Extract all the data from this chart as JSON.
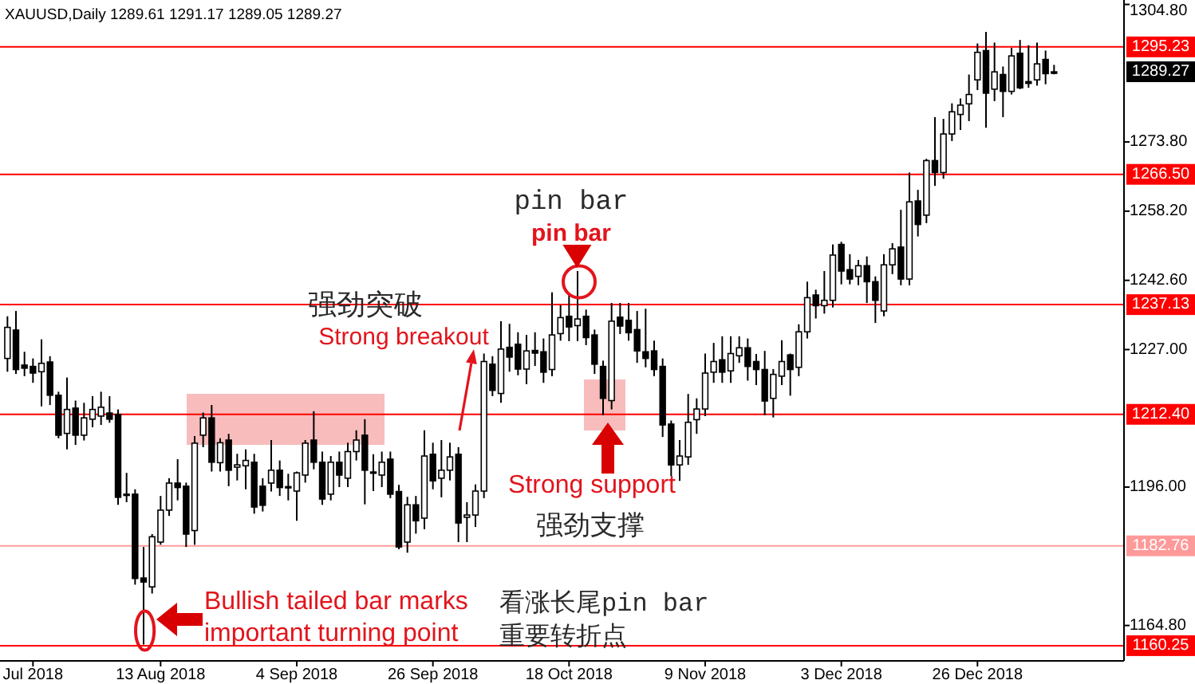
{
  "chart_data": {
    "type": "candlestick",
    "title": "XAUUSD,Daily 1289.61 1291.17 1289.05 1289.27",
    "categories": [
      null,
      null,
      null,
      "Jul 2018",
      null,
      null,
      null,
      null,
      null,
      null,
      null,
      null,
      null,
      null,
      null,
      null,
      null,
      null,
      "13 Aug 2018",
      null,
      null,
      null,
      null,
      null,
      null,
      null,
      null,
      null,
      null,
      null,
      null,
      null,
      null,
      null,
      "4 Sep 2018",
      null,
      null,
      null,
      null,
      null,
      null,
      null,
      null,
      null,
      null,
      null,
      null,
      null,
      null,
      null,
      "26 Sep 2018",
      null,
      null,
      null,
      null,
      null,
      null,
      null,
      null,
      null,
      null,
      null,
      null,
      null,
      null,
      null,
      "18 Oct 2018",
      null,
      null,
      null,
      null,
      null,
      null,
      null,
      null,
      null,
      null,
      null,
      null,
      null,
      null,
      null,
      "9 Nov 2018",
      null,
      null,
      null,
      null,
      null,
      null,
      null,
      null,
      null,
      null,
      null,
      null,
      null,
      null,
      null,
      "3 Dec 2018",
      null,
      null,
      null,
      null,
      null,
      null,
      null,
      null,
      null,
      null,
      null,
      null,
      null,
      null,
      null,
      "26 Dec 2018",
      null,
      null,
      null,
      null,
      null,
      null,
      null,
      null,
      null
    ],
    "ohlc": [
      [
        1225,
        1234.5,
        1222,
        1232
      ],
      [
        1231.4,
        1235.7,
        1221.5,
        1222.5
      ],
      [
        1223.5,
        1226.5,
        1221,
        1222.8
      ],
      [
        1223.2,
        1225,
        1219.5,
        1221.7
      ],
      [
        1222,
        1229.3,
        1214.2,
        1223.9
      ],
      [
        1224.2,
        1225.5,
        1214.5,
        1216.7
      ],
      [
        1216.7,
        1217.5,
        1207,
        1207.7
      ],
      [
        1208.1,
        1220.7,
        1204.5,
        1213.5
      ],
      [
        1213.8,
        1215.5,
        1205.5,
        1207.7
      ],
      [
        1207.7,
        1215,
        1206.5,
        1211.6
      ],
      [
        1211.3,
        1216.5,
        1209.5,
        1213.5
      ],
      [
        1212,
        1217.5,
        1210,
        1214
      ],
      [
        1212.7,
        1216.5,
        1210.5,
        1211.3
      ],
      [
        1212.4,
        1213.5,
        1192,
        1193.7
      ],
      [
        1194.2,
        1199.2,
        1192.6,
        1194.4
      ],
      [
        1194.4,
        1195.5,
        1174,
        1175.4
      ],
      [
        1175.5,
        1182.5,
        1160.5,
        1174.6
      ],
      [
        1173.5,
        1185.4,
        1172,
        1184.8
      ],
      [
        1183.6,
        1194,
        1183,
        1190.8
      ],
      [
        1190.8,
        1198,
        1189.5,
        1196.9
      ],
      [
        1196.9,
        1202.3,
        1193,
        1195.9
      ],
      [
        1196.2,
        1197,
        1182.5,
        1185.4
      ],
      [
        1186.2,
        1207.5,
        1183,
        1205.9
      ],
      [
        1207.7,
        1212.8,
        1205,
        1211.6
      ],
      [
        1211.6,
        1214.5,
        1199.5,
        1201.6
      ],
      [
        1201.5,
        1207,
        1199.5,
        1206
      ],
      [
        1206.6,
        1208,
        1196.2,
        1199.8
      ],
      [
        1200.5,
        1203.5,
        1197.5,
        1201
      ],
      [
        1200.8,
        1204.5,
        1195.5,
        1202
      ],
      [
        1201.6,
        1203.5,
        1190,
        1191.5
      ],
      [
        1196.2,
        1198,
        1190.5,
        1191.9
      ],
      [
        1196.9,
        1206.6,
        1195,
        1199.8
      ],
      [
        1199.8,
        1202,
        1194,
        1195.9
      ],
      [
        1196.1,
        1199,
        1193,
        1195.9
      ],
      [
        1195.1,
        1199.5,
        1188.4,
        1199.2
      ],
      [
        1198.7,
        1206.6,
        1197,
        1205.9
      ],
      [
        1206.6,
        1213.1,
        1200,
        1201.6
      ],
      [
        1201.6,
        1204,
        1192,
        1193.3
      ],
      [
        1194.4,
        1203,
        1193,
        1201.6
      ],
      [
        1201.6,
        1204,
        1196,
        1198.7
      ],
      [
        1198,
        1206,
        1196,
        1204
      ],
      [
        1204,
        1208.8,
        1202,
        1206.6
      ],
      [
        1207.7,
        1211.3,
        1192.1,
        1199.8
      ],
      [
        1199.4,
        1203.4,
        1195.1,
        1199.2
      ],
      [
        1198.7,
        1204,
        1196,
        1201.6
      ],
      [
        1202.3,
        1204,
        1193.5,
        1194.4
      ],
      [
        1195,
        1196.5,
        1182,
        1182.5
      ],
      [
        1183.6,
        1193.8,
        1181.2,
        1192
      ],
      [
        1192,
        1194,
        1185.5,
        1188.4
      ],
      [
        1189,
        1208.8,
        1186.5,
        1203
      ],
      [
        1203.4,
        1206,
        1195.5,
        1197.4
      ],
      [
        1198,
        1206.6,
        1193.7,
        1199.8
      ],
      [
        1199.8,
        1206,
        1197.5,
        1202.8
      ],
      [
        1203.4,
        1205,
        1183.6,
        1187.9
      ],
      [
        1189.2,
        1192.6,
        1183.6,
        1189.7
      ],
      [
        1189.7,
        1196.6,
        1187,
        1195.1
      ],
      [
        1195.1,
        1226.1,
        1193.5,
        1224.3
      ],
      [
        1223.7,
        1225.5,
        1216.5,
        1217.8
      ],
      [
        1217.1,
        1233.4,
        1215,
        1227.1
      ],
      [
        1227.5,
        1232.8,
        1222,
        1225.3
      ],
      [
        1228.2,
        1230.9,
        1221.2,
        1222.6
      ],
      [
        1222.6,
        1230.3,
        1219.2,
        1226.7
      ],
      [
        1226.8,
        1230.9,
        1223.3,
        1226.2
      ],
      [
        1226.5,
        1229.5,
        1219.5,
        1221.9
      ],
      [
        1222.5,
        1239.9,
        1221,
        1230.3
      ],
      [
        1230.6,
        1237,
        1229,
        1234.2
      ],
      [
        1234.5,
        1239.3,
        1228.9,
        1232.1
      ],
      [
        1232.4,
        1244.7,
        1228.9,
        1233.9
      ],
      [
        1234.5,
        1236,
        1228,
        1229.7
      ],
      [
        1230.3,
        1231.5,
        1221.5,
        1223.7
      ],
      [
        1223.2,
        1224.5,
        1212.2,
        1216
      ],
      [
        1215.5,
        1237.5,
        1213.5,
        1233.4
      ],
      [
        1234.3,
        1237.5,
        1230.5,
        1232.3
      ],
      [
        1233.6,
        1237.5,
        1229,
        1230.8
      ],
      [
        1231.5,
        1235.7,
        1224,
        1226.7
      ],
      [
        1226.5,
        1236.2,
        1223,
        1225
      ],
      [
        1226.7,
        1229,
        1221,
        1222.5
      ],
      [
        1223.2,
        1225,
        1207.3,
        1210
      ],
      [
        1210.2,
        1211,
        1198.4,
        1201
      ],
      [
        1201,
        1206.6,
        1197.4,
        1203
      ],
      [
        1202.8,
        1217,
        1201,
        1210.6
      ],
      [
        1211.2,
        1216,
        1208,
        1213.6
      ],
      [
        1213.6,
        1226.1,
        1212,
        1221.7
      ],
      [
        1221.9,
        1228.5,
        1219.5,
        1224.3
      ],
      [
        1224.7,
        1230,
        1219.5,
        1221.9
      ],
      [
        1222.2,
        1230,
        1219.5,
        1226.1
      ],
      [
        1225.6,
        1230,
        1224,
        1227.4
      ],
      [
        1227.4,
        1229.5,
        1220,
        1223.2
      ],
      [
        1224.3,
        1226,
        1219,
        1222.5
      ],
      [
        1222.5,
        1226.7,
        1212.2,
        1215.4
      ],
      [
        1216,
        1222.6,
        1211.7,
        1221.4
      ],
      [
        1221,
        1229.1,
        1219,
        1224.3
      ],
      [
        1225.8,
        1226.1,
        1216.6,
        1222.5
      ],
      [
        1223,
        1232.7,
        1221,
        1231
      ],
      [
        1231,
        1242.3,
        1229.5,
        1238.7
      ],
      [
        1239.3,
        1240.5,
        1234,
        1236.9
      ],
      [
        1236.9,
        1244.7,
        1235.1,
        1238.1
      ],
      [
        1238.1,
        1250.7,
        1236.5,
        1248.3
      ],
      [
        1250.7,
        1251.3,
        1241.7,
        1244.7
      ],
      [
        1245,
        1248.5,
        1241.7,
        1242.9
      ],
      [
        1243.5,
        1247.2,
        1241.5,
        1245.9
      ],
      [
        1245.9,
        1248,
        1237.5,
        1242.3
      ],
      [
        1242.3,
        1243.5,
        1233,
        1238.1
      ],
      [
        1235.7,
        1248.5,
        1234.5,
        1246.1
      ],
      [
        1246.1,
        1251,
        1244,
        1249.7
      ],
      [
        1250.1,
        1258.5,
        1241.5,
        1242.9
      ],
      [
        1242.9,
        1266.9,
        1241.5,
        1260.3
      ],
      [
        1260.5,
        1263,
        1252.5,
        1255.2
      ],
      [
        1257.3,
        1270,
        1255.5,
        1269.6
      ],
      [
        1269.6,
        1279.4,
        1263.9,
        1266.9
      ],
      [
        1266.9,
        1279,
        1265.5,
        1275.6
      ],
      [
        1275.6,
        1282.5,
        1274,
        1280.6
      ],
      [
        1280,
        1283.6,
        1276.5,
        1282.1
      ],
      [
        1282.4,
        1289,
        1278.5,
        1284.5
      ],
      [
        1287.8,
        1296,
        1285.5,
        1294
      ],
      [
        1294.4,
        1298.6,
        1277,
        1284.8
      ],
      [
        1285.7,
        1296.2,
        1283,
        1289.6
      ],
      [
        1289,
        1290.8,
        1279.4,
        1285.2
      ],
      [
        1285.2,
        1295,
        1284.5,
        1293.2
      ],
      [
        1293.8,
        1296.8,
        1285.7,
        1286
      ],
      [
        1287.4,
        1295.6,
        1286,
        1287
      ],
      [
        1287.8,
        1296.2,
        1286.5,
        1291.4
      ],
      [
        1292.4,
        1294.4,
        1286.8,
        1289.2
      ],
      [
        1289.61,
        1291.17,
        1289.05,
        1289.27
      ]
    ],
    "ylim": [
      1157.0,
      1305.8
    ],
    "yticks": [
      {
        "value": 1304.8,
        "label": "1304.80"
      },
      {
        "value": 1273.8,
        "label": "1273.80"
      },
      {
        "value": 1258.2,
        "label": "1258.20"
      },
      {
        "value": 1242.6,
        "label": "1242.60"
      },
      {
        "value": 1227,
        "label": "1227.00"
      },
      {
        "value": 1196,
        "label": "1196.00"
      },
      {
        "value": 1164.8,
        "label": "1164.80"
      }
    ],
    "ref_lines": [
      {
        "axis": "y",
        "value": 1295.23,
        "label": "1295.23",
        "color": "#ff0000"
      },
      {
        "axis": "y",
        "value": 1266.5,
        "label": "1266.50",
        "color": "#ff0000"
      },
      {
        "axis": "y",
        "value": 1237.13,
        "label": "1237.13",
        "color": "#ff0000"
      },
      {
        "axis": "y",
        "value": 1212.4,
        "label": "1212.40",
        "color": "#ff0000"
      },
      {
        "axis": "y",
        "value": 1182.76,
        "label": "1182.76",
        "color": "#ff9a9a"
      },
      {
        "axis": "y",
        "value": 1160.25,
        "label": "1160.25",
        "color": "#ff0000"
      }
    ],
    "annotations": [
      "强劲突破",
      "Strong breakout",
      "pin bar",
      "pin bar",
      "Strong support",
      "强劲支撑",
      "Bullish tailed bar marks",
      "important turning point",
      "看涨长尾pin bar",
      "重要转折点",
      "1289.27"
    ]
  }
}
